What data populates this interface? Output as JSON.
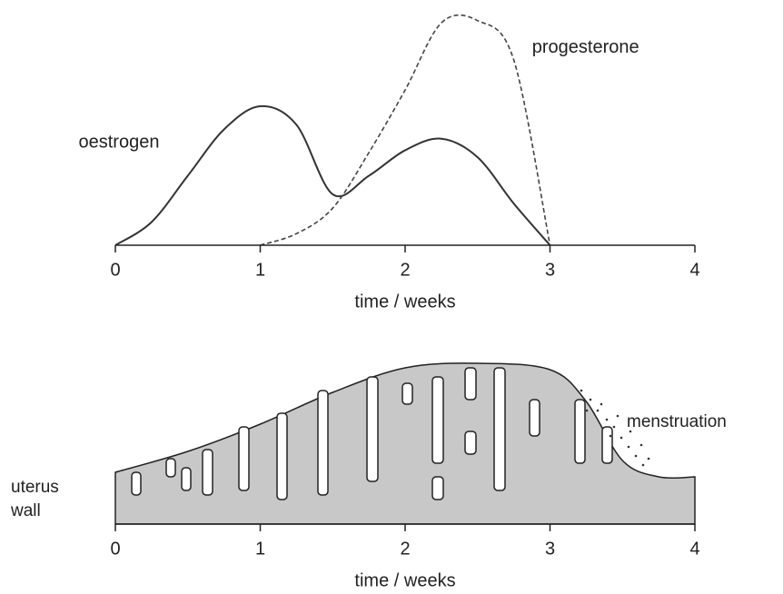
{
  "chart_data": [
    {
      "type": "line",
      "xlabel": "time / weeks",
      "x": [
        0,
        0.25,
        0.5,
        0.75,
        1,
        1.25,
        1.5,
        1.75,
        2,
        2.25,
        2.5,
        2.75,
        3
      ],
      "series": [
        {
          "name": "oestrogen",
          "color": "#333333",
          "style": "solid",
          "values": [
            0,
            10,
            30,
            50,
            60,
            52,
            22,
            30,
            41,
            46,
            38,
            18,
            0
          ]
        },
        {
          "name": "progesterone",
          "color": "#444444",
          "style": "dashed",
          "values": [
            null,
            null,
            null,
            null,
            0,
            5,
            16,
            40,
            67,
            96,
            97,
            80,
            0
          ]
        }
      ],
      "xlim": [
        0,
        4
      ],
      "xticks": [
        0,
        1,
        2,
        3,
        4
      ],
      "ylim": [
        0,
        100
      ]
    },
    {
      "type": "area",
      "xlabel": "time / weeks",
      "x": [
        0,
        0.5,
        1,
        1.5,
        2,
        2.5,
        3,
        3.25,
        3.5,
        3.75,
        4
      ],
      "values": [
        57,
        80,
        110,
        145,
        172,
        177,
        170,
        135,
        70,
        52,
        52
      ],
      "color": "#c8c8c8",
      "annotations": [
        "uterus wall",
        "menstruation"
      ],
      "xlim": [
        0,
        4
      ],
      "xticks": [
        0,
        1,
        2,
        3,
        4
      ],
      "ylim": [
        0,
        200
      ]
    }
  ]
}
